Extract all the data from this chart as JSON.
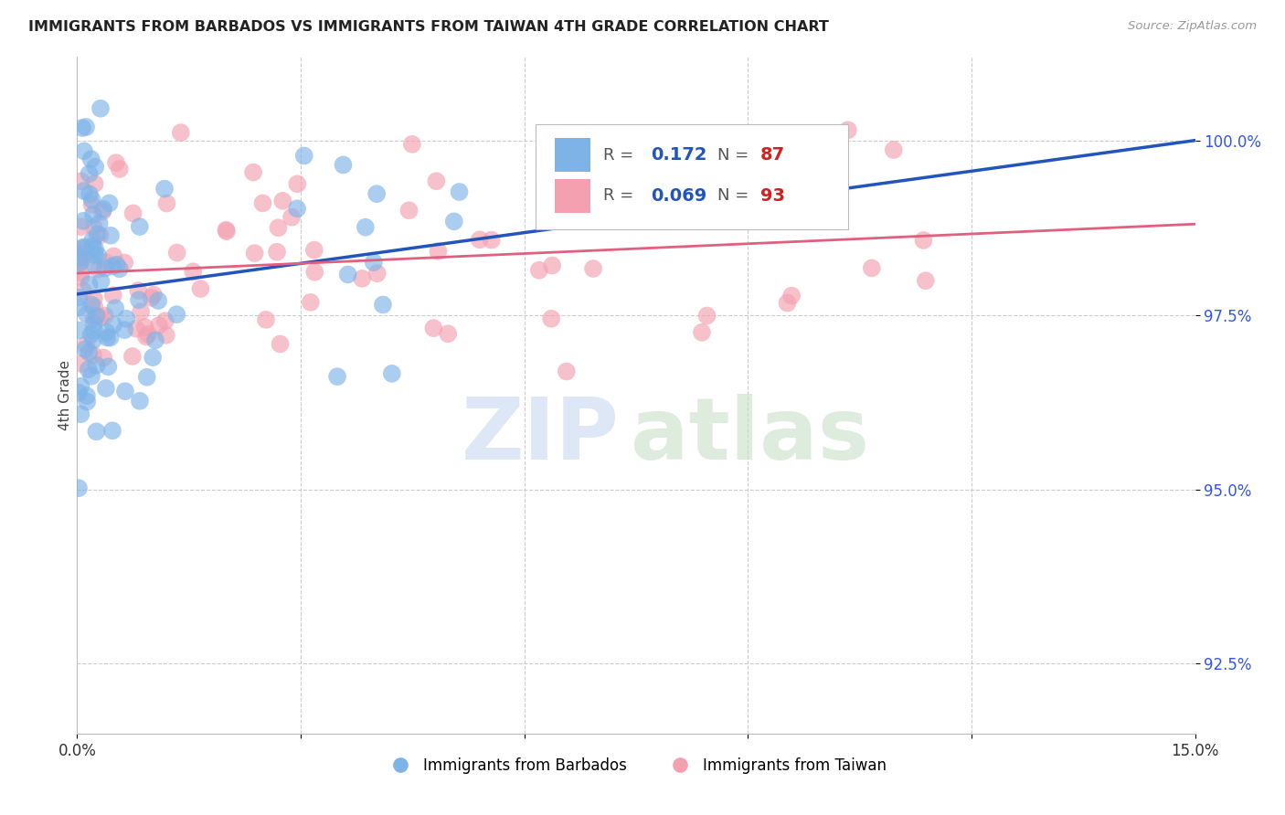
{
  "title": "IMMIGRANTS FROM BARBADOS VS IMMIGRANTS FROM TAIWAN 4TH GRADE CORRELATION CHART",
  "source": "Source: ZipAtlas.com",
  "ylabel": "4th Grade",
  "xlim": [
    0.0,
    15.0
  ],
  "ylim": [
    91.5,
    101.2
  ],
  "yticks": [
    92.5,
    95.0,
    97.5,
    100.0
  ],
  "ytick_labels": [
    "92.5%",
    "95.0%",
    "97.5%",
    "100.0%"
  ],
  "xticks": [
    0.0,
    3.0,
    6.0,
    9.0,
    12.0,
    15.0
  ],
  "xtick_labels": [
    "0.0%",
    "",
    "",
    "",
    "",
    "15.0%"
  ],
  "barbados_color": "#7EB3E8",
  "taiwan_color": "#F4A0B0",
  "barbados_r": 0.172,
  "taiwan_r": 0.069,
  "barbados_n": 87,
  "taiwan_n": 93,
  "line_blue": "#2255BB",
  "line_pink": "#E06080",
  "ytick_color": "#3355EE",
  "watermark_zip": "ZIP",
  "watermark_atlas": "atlas"
}
